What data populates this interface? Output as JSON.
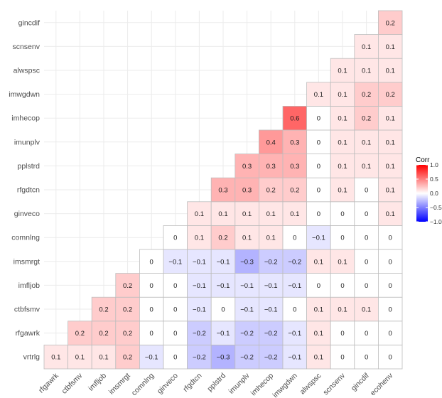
{
  "chart_data": {
    "type": "heatmap",
    "variables": [
      "rfgawrk",
      "ctbfsmv",
      "imfljob",
      "imsmrgt",
      "comnlng",
      "ginveco",
      "rfgdtcn",
      "pplstrd",
      "imunplv",
      "imhecop",
      "imwgdwn",
      "alwspsc",
      "scnsenv",
      "gincdif",
      "ecohenv"
    ],
    "x_labels": [
      "rfgawrk",
      "ctbfsmv",
      "imfljob",
      "imsmrgt",
      "comnlng",
      "ginveco",
      "rfgdtcn",
      "pplstrd",
      "imunplv",
      "imhecop",
      "imwgdwn",
      "alwspsc",
      "scnsenv",
      "gincdif",
      "ecohenv"
    ],
    "y_labels": [
      "vrtrlg",
      "rfgawrk",
      "ctbfsmv",
      "imfljob",
      "imsmrgt",
      "comnlng",
      "ginveco",
      "rfgdtcn",
      "pplstrd",
      "imunplv",
      "imhecop",
      "imwgdwn",
      "alwspsc",
      "scnsenv",
      "gincdif"
    ],
    "rows": [
      {
        "label": "vrtrlg",
        "values": [
          0.1,
          0.1,
          0.1,
          0.2,
          -0.1,
          0,
          -0.2,
          -0.3,
          -0.2,
          -0.2,
          -0.1,
          0.1,
          0,
          0,
          0
        ]
      },
      {
        "label": "rfgawrk",
        "values": [
          null,
          0.2,
          0.2,
          0.2,
          0,
          0,
          -0.2,
          -0.1,
          -0.2,
          -0.2,
          -0.1,
          0.1,
          0,
          0,
          0
        ]
      },
      {
        "label": "ctbfsmv",
        "values": [
          null,
          null,
          0.2,
          0.2,
          0,
          0,
          -0.1,
          0,
          -0.1,
          -0.1,
          0,
          0.1,
          0.1,
          0.1,
          0
        ]
      },
      {
        "label": "imfljob",
        "values": [
          null,
          null,
          null,
          0.2,
          0,
          0,
          -0.1,
          -0.1,
          -0.1,
          -0.1,
          -0.1,
          0,
          0,
          0,
          0
        ]
      },
      {
        "label": "imsmrgt",
        "values": [
          null,
          null,
          null,
          null,
          0,
          -0.1,
          -0.1,
          -0.1,
          -0.3,
          -0.2,
          -0.2,
          0.1,
          0.1,
          0,
          0
        ]
      },
      {
        "label": "comnlng",
        "values": [
          null,
          null,
          null,
          null,
          null,
          0,
          0.1,
          0.2,
          0.1,
          0.1,
          0,
          -0.1,
          0,
          0,
          0
        ]
      },
      {
        "label": "ginveco",
        "values": [
          null,
          null,
          null,
          null,
          null,
          null,
          0.1,
          0.1,
          0.1,
          0.1,
          0.1,
          0,
          0,
          0,
          0.1
        ]
      },
      {
        "label": "rfgdtcn",
        "values": [
          null,
          null,
          null,
          null,
          null,
          null,
          null,
          0.3,
          0.3,
          0.2,
          0.2,
          0,
          0.1,
          0,
          0.1
        ]
      },
      {
        "label": "pplstrd",
        "values": [
          null,
          null,
          null,
          null,
          null,
          null,
          null,
          null,
          0.3,
          0.3,
          0.3,
          0,
          0.1,
          0.1,
          0.1
        ]
      },
      {
        "label": "imunplv",
        "values": [
          null,
          null,
          null,
          null,
          null,
          null,
          null,
          null,
          null,
          0.4,
          0.3,
          0,
          0.1,
          0.1,
          0.1
        ]
      },
      {
        "label": "imhecop",
        "values": [
          null,
          null,
          null,
          null,
          null,
          null,
          null,
          null,
          null,
          null,
          0.6,
          0,
          0.1,
          0.2,
          0.1
        ]
      },
      {
        "label": "imwgdwn",
        "values": [
          null,
          null,
          null,
          null,
          null,
          null,
          null,
          null,
          null,
          null,
          null,
          0.1,
          0.1,
          0.2,
          0.2
        ]
      },
      {
        "label": "alwspsc",
        "values": [
          null,
          null,
          null,
          null,
          null,
          null,
          null,
          null,
          null,
          null,
          null,
          null,
          0.1,
          0.1,
          0.1
        ]
      },
      {
        "label": "scnsenv",
        "values": [
          null,
          null,
          null,
          null,
          null,
          null,
          null,
          null,
          null,
          null,
          null,
          null,
          null,
          0.1,
          0.1
        ]
      },
      {
        "label": "gincdif",
        "values": [
          null,
          null,
          null,
          null,
          null,
          null,
          null,
          null,
          null,
          null,
          null,
          null,
          null,
          null,
          0.2
        ]
      }
    ],
    "legend": {
      "title": "Corr",
      "ticks": [
        1.0,
        0.5,
        0.0,
        -0.5,
        -1.0
      ],
      "tick_labels": [
        "1.0",
        "0.5",
        "0.0",
        "−0.5",
        "−1.0"
      ],
      "range": [
        -1,
        1
      ],
      "placement": "right"
    },
    "colors": {
      "high": "#ff0000",
      "mid": "#ffffff",
      "low": "#0000ff",
      "grid": "#ebebeb",
      "cell_border": "#bdbdbd"
    }
  }
}
